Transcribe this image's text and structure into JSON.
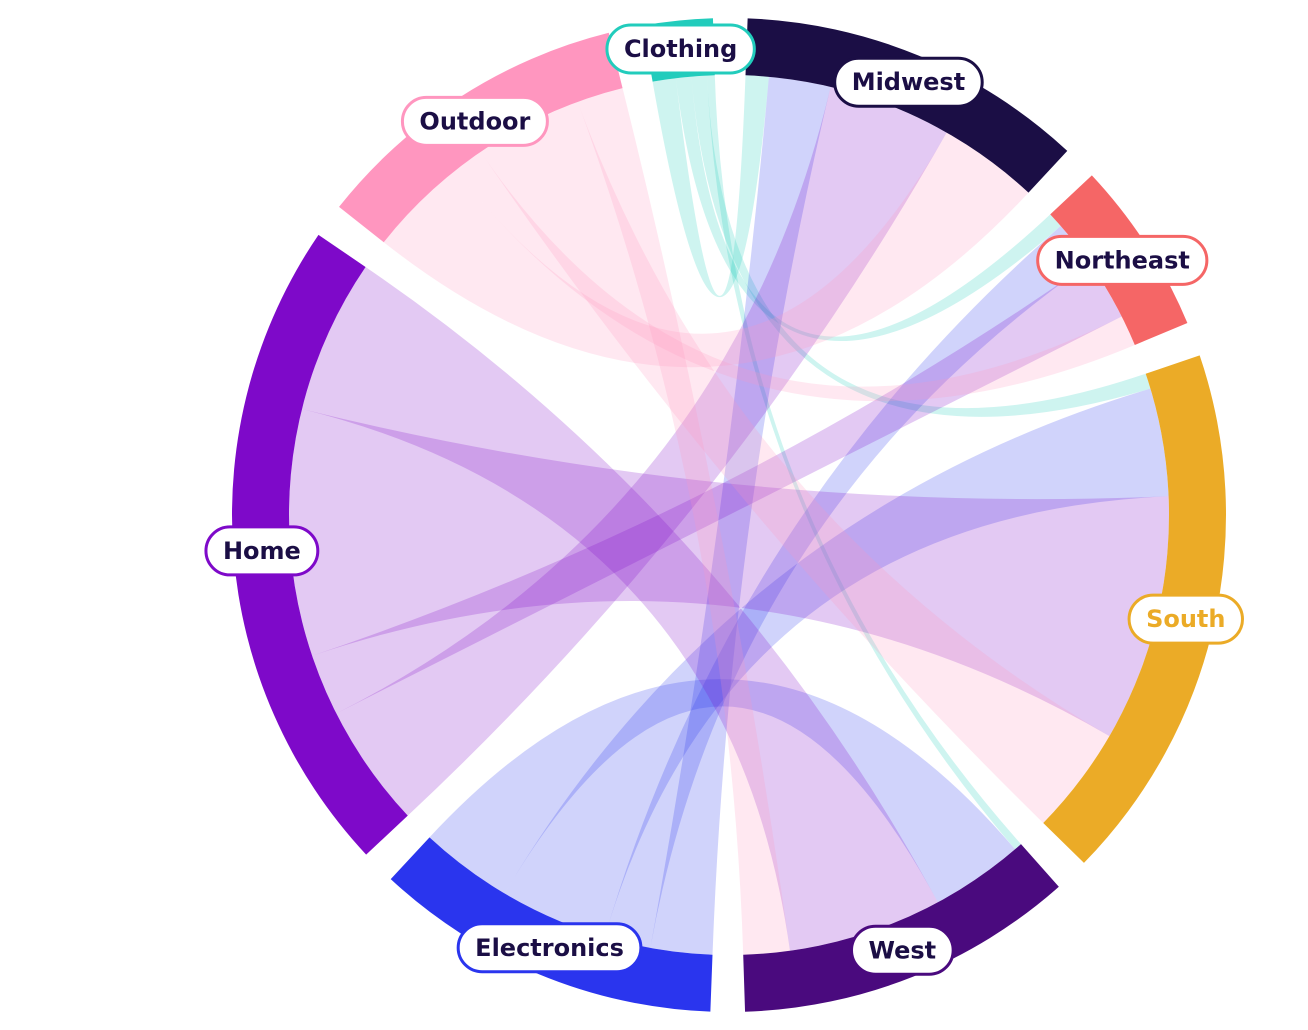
{
  "chart_data": {
    "type": "chord",
    "nodes": [
      {
        "label": "Clothing",
        "color": "#22ccbc",
        "text_color": "#1b0e45"
      },
      {
        "label": "Midwest",
        "color": "#1b0e45",
        "text_color": "#1b0e45"
      },
      {
        "label": "Northeast",
        "color": "#f56666",
        "text_color": "#1b0e45"
      },
      {
        "label": "South",
        "color": "#ebab27",
        "text_color": "#ebab27"
      },
      {
        "label": "West",
        "color": "#4a0a7e",
        "text_color": "#1b0e45"
      },
      {
        "label": "Electronics",
        "color": "#2a35ee",
        "text_color": "#1b0e45"
      },
      {
        "label": "Home",
        "color": "#7e09c9",
        "text_color": "#1b0e45"
      },
      {
        "label": "Outdoor",
        "color": "#ff96bf",
        "text_color": "#1b0e45"
      }
    ],
    "links": [
      {
        "source": 0,
        "target": 1,
        "value": 3
      },
      {
        "source": 0,
        "target": 2,
        "value": 2
      },
      {
        "source": 0,
        "target": 3,
        "value": 2
      },
      {
        "source": 0,
        "target": 4,
        "value": 1
      },
      {
        "source": 5,
        "target": 1,
        "value": 8
      },
      {
        "source": 5,
        "target": 2,
        "value": 6
      },
      {
        "source": 5,
        "target": 3,
        "value": 14
      },
      {
        "source": 5,
        "target": 4,
        "value": 12
      },
      {
        "source": 6,
        "target": 1,
        "value": 16
      },
      {
        "source": 6,
        "target": 2,
        "value": 8
      },
      {
        "source": 6,
        "target": 3,
        "value": 32
      },
      {
        "source": 6,
        "target": 4,
        "value": 20
      },
      {
        "source": 7,
        "target": 1,
        "value": 13
      },
      {
        "source": 7,
        "target": 2,
        "value": 4
      },
      {
        "source": 7,
        "target": 3,
        "value": 14
      },
      {
        "source": 7,
        "target": 4,
        "value": 6
      }
    ]
  }
}
